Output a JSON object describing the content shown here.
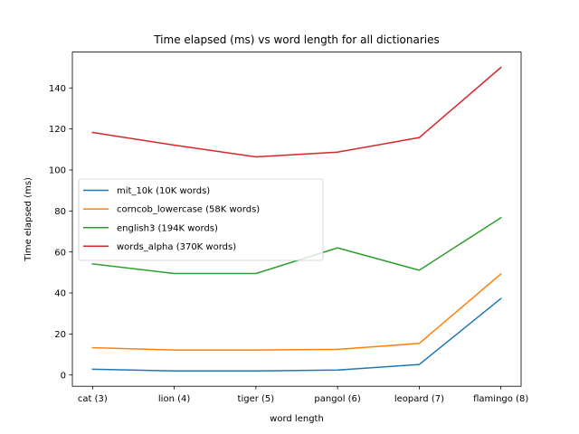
{
  "chart_data": {
    "type": "line",
    "title": "Time elapsed (ms) vs word length for all dictionaries",
    "xlabel": "word length",
    "ylabel": "Time elapsed (ms)",
    "categories": [
      "cat (3)",
      "lion (4)",
      "tiger (5)",
      "pangol (6)",
      "leopard (7)",
      "flamingo (8)"
    ],
    "ylim": [
      -5.5,
      157.5
    ],
    "yticks": [
      0,
      20,
      40,
      60,
      80,
      100,
      120,
      140
    ],
    "grid": false,
    "legend_position": "center-left",
    "series": [
      {
        "name": "mit_10k (10K words)",
        "color": "#1f77b4",
        "values": [
          2.8,
          2.0,
          2.0,
          2.4,
          5.1,
          37.3
        ]
      },
      {
        "name": "corncob_lowercase (58K words)",
        "color": "#ff7f0e",
        "values": [
          13.3,
          12.2,
          12.2,
          12.5,
          15.4,
          49.3
        ]
      },
      {
        "name": "english3 (194K words)",
        "color": "#2ca02c",
        "values": [
          54.2,
          49.5,
          49.5,
          62.0,
          51.1,
          76.7
        ]
      },
      {
        "name": "words_alpha (370K words)",
        "color": "#d62728",
        "values": [
          118.3,
          112.1,
          106.4,
          108.7,
          115.8,
          150.0
        ]
      }
    ]
  }
}
